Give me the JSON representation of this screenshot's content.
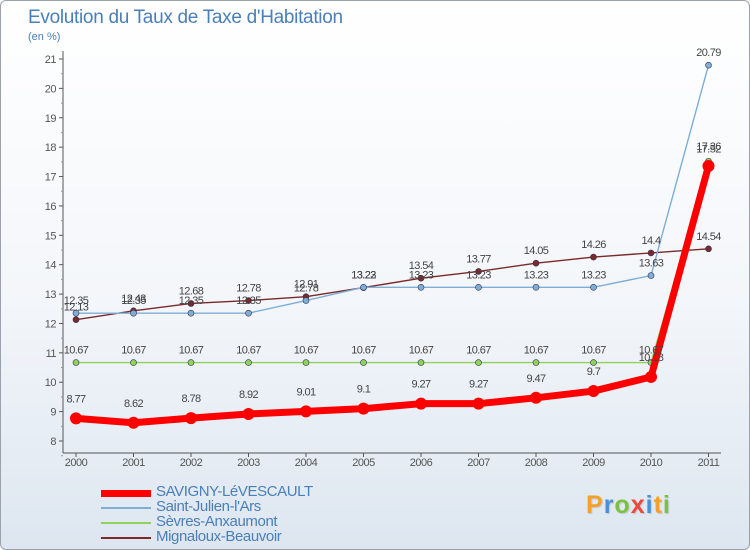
{
  "chart_data": {
    "type": "line",
    "title": "Evolution du Taux de Taxe d'Habitation",
    "subtitle": "(en %)",
    "x": [
      "2000",
      "2001",
      "2002",
      "2003",
      "2004",
      "2005",
      "2006",
      "2007",
      "2008",
      "2009",
      "2010",
      "2011"
    ],
    "y_ticks": [
      "8",
      "9",
      "10",
      "11",
      "12",
      "13",
      "14",
      "15",
      "16",
      "17",
      "18",
      "19",
      "20",
      "21"
    ],
    "ylim": [
      8,
      21
    ],
    "grid": false,
    "legend_placement": "bottom-left",
    "series": [
      {
        "name": "SAVIGNY-LéVESCAULT",
        "color": "#ff0000",
        "values": [
          8.77,
          8.62,
          8.78,
          8.92,
          9.01,
          9.1,
          9.27,
          9.27,
          9.47,
          9.7,
          10.18,
          17.36
        ],
        "labels": [
          "8.77",
          "8.62",
          "8.78",
          "8.92",
          "9.01",
          "9.1",
          "9.27",
          "9.27",
          "9.47",
          "9.7",
          "10.18",
          "17.36"
        ]
      },
      {
        "name": "Saint-Julien-l'Ars",
        "color": "#7eaed6",
        "values": [
          12.35,
          12.35,
          12.35,
          12.35,
          12.78,
          13.23,
          13.23,
          13.23,
          13.23,
          13.23,
          13.63,
          20.79
        ],
        "labels": [
          "12.35",
          "12.35",
          "12.35",
          "12.35",
          "12.78",
          "13.23",
          "13.23",
          "13.23",
          "13.23",
          "13.23",
          "13.63",
          "20.79"
        ]
      },
      {
        "name": "Sèvres-Anxaumont",
        "color": "#8fd35b",
        "values": [
          10.67,
          10.67,
          10.67,
          10.67,
          10.67,
          10.67,
          10.67,
          10.67,
          10.67,
          10.67,
          10.67,
          17.52
        ],
        "labels": [
          "10.67",
          "10.67",
          "10.67",
          "10.67",
          "10.67",
          "10.67",
          "10.67",
          "10.67",
          "10.67",
          "10.67",
          "10.67",
          "17.52"
        ]
      },
      {
        "name": "Mignaloux-Beauvoir",
        "color": "#7a2a2a",
        "values": [
          12.13,
          12.43,
          12.68,
          12.78,
          12.91,
          13.22,
          13.54,
          13.77,
          14.05,
          14.26,
          14.4,
          14.54
        ],
        "labels": [
          "12.13",
          "12.43",
          "12.68",
          "12.78",
          "12.91",
          "13.22",
          "13.54",
          "13.77",
          "14.05",
          "14.26",
          "14.4",
          "14.54"
        ]
      }
    ]
  },
  "legend": {
    "items": [
      {
        "label": "SAVIGNY-LéVESCAULT",
        "color": "#ff0000"
      },
      {
        "label": "Saint-Julien-l'Ars",
        "color": "#7eaed6"
      },
      {
        "label": "Sèvres-Anxaumont",
        "color": "#8fd35b"
      },
      {
        "label": "Mignaloux-Beauvoir",
        "color": "#7a2a2a"
      }
    ]
  },
  "logo": {
    "letters": [
      "P",
      "r",
      "o",
      "x",
      "i",
      "t",
      "i"
    ],
    "colors": [
      "#f2a22b",
      "#4a90d9",
      "#7cc242",
      "#e94b3c",
      "#4a90d9",
      "#f2a22b",
      "#7cc242"
    ]
  }
}
